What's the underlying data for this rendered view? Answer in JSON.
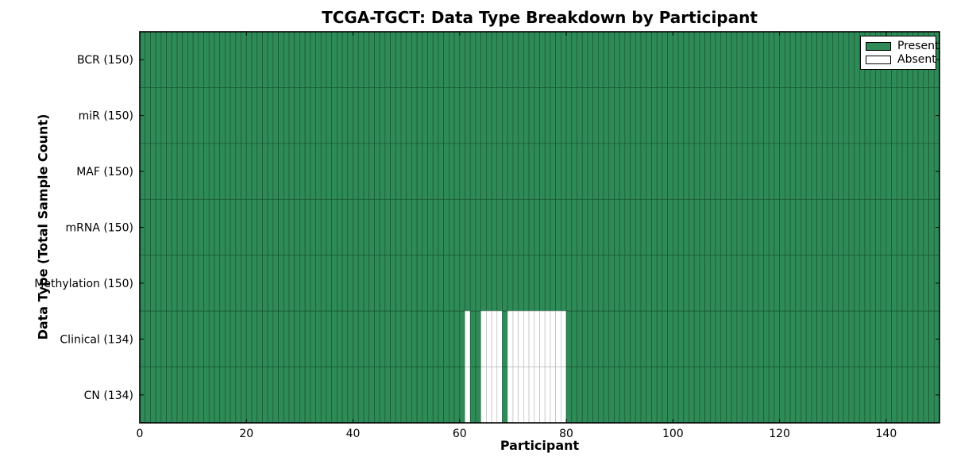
{
  "figure": {
    "title": "TCGA-TGCT: Data Type Breakdown by Participant",
    "xlabel": "Participant",
    "ylabel": "Data Type (Total Sample Count)"
  },
  "legend": {
    "position": "upper right",
    "items": [
      {
        "label": "Present",
        "color": "#2e8b57"
      },
      {
        "label": "Absent",
        "color": "#ffffff"
      }
    ]
  },
  "chart_data": {
    "type": "heatmap",
    "title": "TCGA-TGCT: Data Type Breakdown by Participant",
    "xlabel": "Participant",
    "ylabel": "Data Type (Total Sample Count)",
    "n_participants": 150,
    "xlim": [
      0,
      150
    ],
    "x_ticks": [
      0,
      20,
      40,
      60,
      80,
      100,
      120,
      140
    ],
    "rows": [
      {
        "label": "BCR (150)",
        "total_samples": 150,
        "absent_participants": []
      },
      {
        "label": "miR (150)",
        "total_samples": 150,
        "absent_participants": []
      },
      {
        "label": "MAF (150)",
        "total_samples": 150,
        "absent_participants": []
      },
      {
        "label": "mRNA (150)",
        "total_samples": 150,
        "absent_participants": []
      },
      {
        "label": "Methylation (150)",
        "total_samples": 150,
        "absent_participants": []
      },
      {
        "label": "Clinical (134)",
        "total_samples": 134,
        "absent_participants": [
          61,
          64,
          65,
          66,
          67,
          69,
          70,
          71,
          72,
          73,
          74,
          75,
          76,
          77,
          78,
          79
        ]
      },
      {
        "label": "CN (134)",
        "total_samples": 134,
        "absent_participants": [
          61,
          64,
          65,
          66,
          67,
          69,
          70,
          71,
          72,
          73,
          74,
          75,
          76,
          77,
          78,
          79
        ]
      }
    ],
    "legend_entries": [
      "Present",
      "Absent"
    ],
    "legend_position": "upper right",
    "grid": true,
    "colors": {
      "present": "#2e8b57",
      "absent": "#ffffff",
      "present_edge": "#1b5534",
      "absent_edge": "#bbbbbb",
      "frame": "#000000",
      "text": "#000000"
    }
  }
}
